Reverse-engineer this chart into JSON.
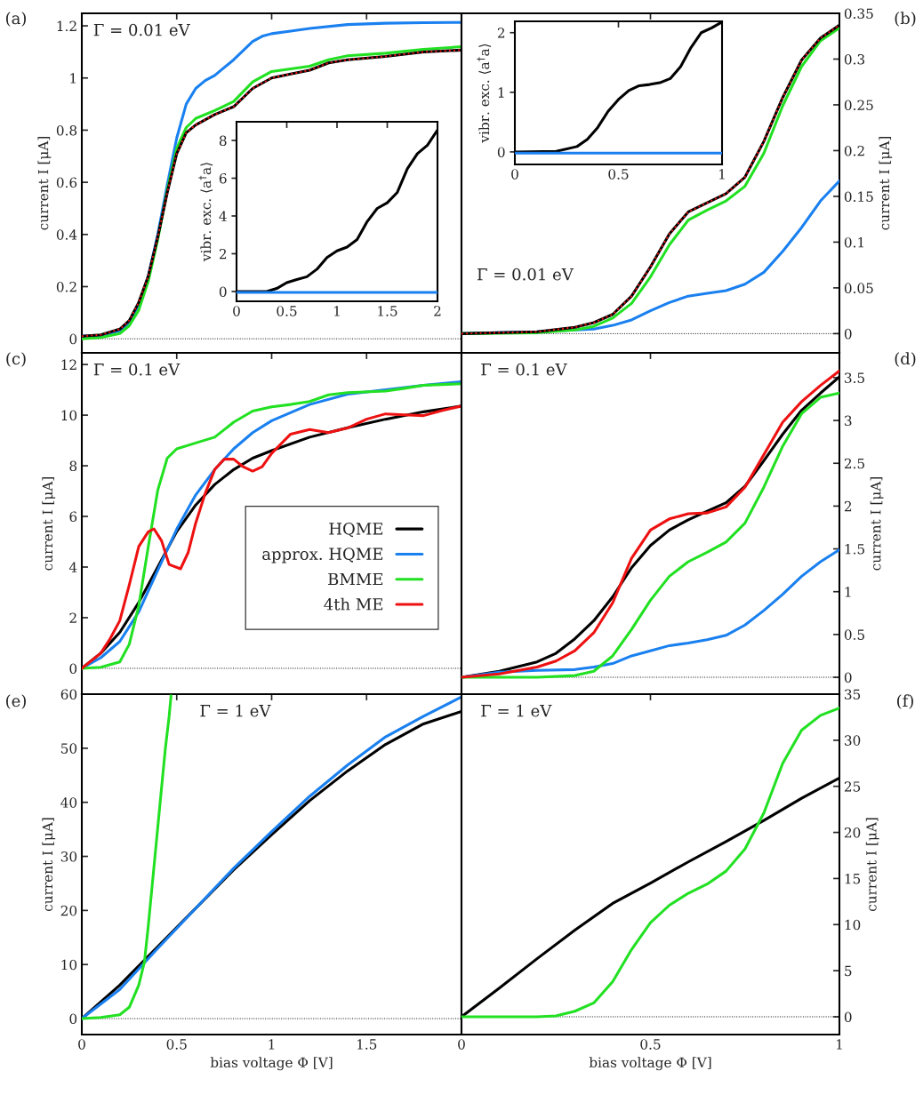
{
  "chart_data": [
    {
      "type": "line",
      "ylabel": "current I [μA]",
      "xlim": [
        0,
        2
      ],
      "xticks": [
        0,
        0.5,
        1,
        1.5,
        2
      ],
      "ylim": [
        -0.054,
        1.248
      ],
      "yticks": [
        0,
        0.2,
        0.4,
        0.6,
        0.8,
        1,
        1.2
      ],
      "tick_labels": "y",
      "annotations": [
        "(a)",
        "Γ = 0.01 eV"
      ],
      "ref_lines": [
        {
          "axis": "y",
          "value": 0,
          "color": "#000000",
          "line_style": "dotted"
        }
      ],
      "series": [
        {
          "color": "#1a80f0",
          "x": [
            0,
            0.1,
            0.2,
            0.25,
            0.3,
            0.35,
            0.4,
            0.45,
            0.5,
            0.55,
            0.6,
            0.65,
            0.7,
            0.8,
            0.9,
            0.95,
            1.0,
            1.1,
            1.2,
            1.4,
            1.6,
            1.8,
            2.0
          ],
          "values": [
            0.01,
            0.013,
            0.03,
            0.06,
            0.13,
            0.24,
            0.4,
            0.59,
            0.77,
            0.9,
            0.96,
            0.99,
            1.01,
            1.07,
            1.14,
            1.16,
            1.17,
            1.18,
            1.19,
            1.205,
            1.21,
            1.212,
            1.213
          ]
        },
        {
          "color": "#22e022",
          "x": [
            0,
            0.1,
            0.2,
            0.25,
            0.3,
            0.35,
            0.4,
            0.45,
            0.5,
            0.55,
            0.6,
            0.7,
            0.8,
            0.9,
            1.0,
            1.1,
            1.2,
            1.3,
            1.4,
            1.6,
            1.8,
            2.0
          ],
          "values": [
            0.0,
            0.005,
            0.02,
            0.05,
            0.11,
            0.22,
            0.38,
            0.57,
            0.73,
            0.81,
            0.845,
            0.875,
            0.91,
            0.985,
            1.025,
            1.035,
            1.045,
            1.07,
            1.085,
            1.095,
            1.11,
            1.12
          ]
        },
        {
          "color": "#000000",
          "x": [
            0,
            0.1,
            0.2,
            0.25,
            0.3,
            0.35,
            0.4,
            0.45,
            0.5,
            0.55,
            0.6,
            0.7,
            0.8,
            0.9,
            1.0,
            1.1,
            1.2,
            1.3,
            1.4,
            1.6,
            1.8,
            2.0
          ],
          "values": [
            0.01,
            0.015,
            0.037,
            0.07,
            0.14,
            0.24,
            0.39,
            0.56,
            0.71,
            0.79,
            0.82,
            0.86,
            0.89,
            0.96,
            1.0,
            1.015,
            1.03,
            1.058,
            1.07,
            1.083,
            1.1,
            1.107
          ]
        },
        {
          "color": "#ee1111",
          "line_style": "dotted",
          "x": [
            0,
            0.1,
            0.2,
            0.25,
            0.3,
            0.35,
            0.4,
            0.45,
            0.5,
            0.55,
            0.6,
            0.7,
            0.8,
            0.9,
            1.0,
            1.1,
            1.2,
            1.3,
            1.4,
            1.6,
            1.8,
            2.0
          ],
          "values": [
            0.01,
            0.015,
            0.037,
            0.07,
            0.14,
            0.24,
            0.39,
            0.56,
            0.71,
            0.79,
            0.82,
            0.86,
            0.89,
            0.96,
            1.0,
            1.015,
            1.03,
            1.058,
            1.07,
            1.083,
            1.1,
            1.107
          ]
        }
      ]
    },
    {
      "type": "line",
      "ylabel": "vibr. exc. ⟨a$^{†}$a⟩",
      "xlim": [
        0,
        2
      ],
      "xticks": [
        0,
        0.5,
        1,
        1.5,
        2
      ],
      "ylim": [
        -0.52,
        8.99
      ],
      "yticks": [
        0,
        2,
        4,
        6,
        8
      ],
      "series": [
        {
          "color": "#000000",
          "x": [
            0,
            0.3,
            0.4,
            0.5,
            0.6,
            0.7,
            0.8,
            0.9,
            1.0,
            1.1,
            1.2,
            1.3,
            1.4,
            1.5,
            1.6,
            1.7,
            1.8,
            1.9,
            2.0
          ],
          "values": [
            0,
            0,
            0.16,
            0.47,
            0.63,
            0.78,
            1.18,
            1.8,
            2.15,
            2.35,
            2.75,
            3.7,
            4.4,
            4.7,
            5.25,
            6.5,
            7.3,
            7.75,
            8.55
          ]
        },
        {
          "color": "#1a80f0",
          "x": [
            0,
            0.5,
            1,
            1.5,
            2
          ],
          "values": [
            -0.05,
            -0.05,
            -0.05,
            -0.05,
            -0.05
          ]
        }
      ]
    },
    {
      "type": "line",
      "y2label": "current I [μA]",
      "xlim": [
        0,
        1
      ],
      "xticks": [
        0,
        0.5,
        1
      ],
      "y2lim": [
        -0.021,
        0.35
      ],
      "y2ticks": [
        0,
        0.05,
        0.1,
        0.15,
        0.2,
        0.25,
        0.3,
        0.35
      ],
      "tick_labels": "y",
      "annotations": [
        "(b)",
        "Γ = 0.01 eV"
      ],
      "ref_lines": [
        {
          "axis": "y2",
          "value": 0,
          "color": "#000000",
          "line_style": "dotted"
        }
      ],
      "series": [
        {
          "axis": "y2",
          "color": "#1a80f0",
          "x": [
            0,
            0.2,
            0.3,
            0.35,
            0.4,
            0.45,
            0.5,
            0.55,
            0.6,
            0.65,
            0.7,
            0.75,
            0.8,
            0.85,
            0.9,
            0.95,
            1.0
          ],
          "values": [
            0,
            0.002,
            0.004,
            0.005,
            0.009,
            0.015,
            0.025,
            0.034,
            0.041,
            0.044,
            0.047,
            0.054,
            0.067,
            0.09,
            0.116,
            0.145,
            0.167
          ]
        },
        {
          "axis": "y2",
          "color": "#22e022",
          "x": [
            0,
            0.2,
            0.3,
            0.35,
            0.4,
            0.45,
            0.5,
            0.55,
            0.6,
            0.65,
            0.7,
            0.75,
            0.8,
            0.85,
            0.9,
            0.95,
            1.0
          ],
          "values": [
            0,
            0.001,
            0.004,
            0.008,
            0.017,
            0.033,
            0.062,
            0.097,
            0.124,
            0.135,
            0.145,
            0.161,
            0.197,
            0.249,
            0.292,
            0.32,
            0.334
          ]
        },
        {
          "axis": "y2",
          "color": "#000000",
          "x": [
            0,
            0.2,
            0.3,
            0.35,
            0.4,
            0.45,
            0.5,
            0.55,
            0.6,
            0.65,
            0.7,
            0.75,
            0.8,
            0.85,
            0.9,
            0.95,
            1.0
          ],
          "values": [
            0,
            0.002,
            0.007,
            0.012,
            0.021,
            0.041,
            0.073,
            0.109,
            0.133,
            0.143,
            0.153,
            0.171,
            0.21,
            0.258,
            0.299,
            0.323,
            0.337
          ]
        },
        {
          "axis": "y2",
          "color": "#ee1111",
          "line_style": "dotted",
          "x": [
            0,
            0.2,
            0.3,
            0.35,
            0.4,
            0.45,
            0.5,
            0.55,
            0.6,
            0.65,
            0.7,
            0.75,
            0.8,
            0.85,
            0.9,
            0.95,
            1.0
          ],
          "values": [
            0,
            0.002,
            0.007,
            0.012,
            0.021,
            0.041,
            0.073,
            0.109,
            0.133,
            0.143,
            0.153,
            0.171,
            0.21,
            0.258,
            0.299,
            0.323,
            0.337
          ]
        }
      ]
    },
    {
      "type": "line",
      "ylabel": "vibr. exc. ⟨a$^{†}$a⟩",
      "xlim": [
        0,
        1
      ],
      "xticks": [
        0,
        0.5,
        1
      ],
      "ylim": [
        -0.21,
        2.19
      ],
      "yticks": [
        0,
        1,
        2
      ],
      "series": [
        {
          "color": "#000000",
          "x": [
            0,
            0.2,
            0.3,
            0.35,
            0.4,
            0.45,
            0.5,
            0.55,
            0.6,
            0.65,
            0.7,
            0.75,
            0.8,
            0.85,
            0.9,
            0.95,
            1.0
          ],
          "values": [
            0,
            0.01,
            0.09,
            0.21,
            0.41,
            0.68,
            0.88,
            1.03,
            1.11,
            1.13,
            1.16,
            1.23,
            1.43,
            1.75,
            2.0,
            2.08,
            2.18
          ]
        },
        {
          "color": "#1a80f0",
          "x": [
            0,
            0.25,
            0.5,
            0.75,
            1
          ],
          "values": [
            -0.02,
            -0.02,
            -0.02,
            -0.02,
            -0.02
          ]
        }
      ]
    },
    {
      "type": "line",
      "ylabel": "current I [μA]",
      "xlim": [
        0,
        2
      ],
      "xticks": [
        0,
        0.5,
        1,
        1.5,
        2
      ],
      "ylim": [
        -1.02,
        12.46
      ],
      "yticks": [
        0,
        2,
        4,
        6,
        8,
        10,
        12
      ],
      "tick_labels": "y",
      "annotations": [
        "(c)",
        "Γ = 0.1 eV"
      ],
      "legend": "right",
      "ref_lines": [
        {
          "axis": "y",
          "value": 0,
          "color": "#000000",
          "line_style": "dotted"
        }
      ],
      "series": [
        {
          "name": "HQME",
          "color": "#000000",
          "x": [
            0,
            0.1,
            0.2,
            0.3,
            0.4,
            0.5,
            0.6,
            0.7,
            0.8,
            0.9,
            1.0,
            1.2,
            1.4,
            1.6,
            1.8,
            2.0
          ],
          "values": [
            0,
            0.6,
            1.42,
            2.6,
            4.0,
            5.4,
            6.45,
            7.26,
            7.85,
            8.3,
            8.6,
            9.13,
            9.5,
            9.84,
            10.13,
            10.36
          ]
        },
        {
          "name": "approx. HQME",
          "color": "#1a80f0",
          "x": [
            0,
            0.1,
            0.2,
            0.3,
            0.4,
            0.5,
            0.6,
            0.7,
            0.8,
            0.9,
            1.0,
            1.2,
            1.4,
            1.6,
            1.8,
            2.0
          ],
          "values": [
            0,
            0.42,
            1.06,
            2.23,
            3.87,
            5.5,
            6.85,
            7.85,
            8.67,
            9.31,
            9.78,
            10.42,
            10.83,
            11.0,
            11.18,
            11.32
          ]
        },
        {
          "name": "BMME",
          "color": "#22e022",
          "x": [
            0,
            0.1,
            0.2,
            0.25,
            0.3,
            0.35,
            0.4,
            0.45,
            0.5,
            0.6,
            0.7,
            0.8,
            0.9,
            1.0,
            1.1,
            1.2,
            1.3,
            1.4,
            1.6,
            1.7,
            1.8,
            2.0
          ],
          "values": [
            0,
            0.04,
            0.25,
            0.95,
            2.47,
            4.8,
            7.03,
            8.3,
            8.67,
            8.9,
            9.13,
            9.72,
            10.16,
            10.33,
            10.42,
            10.54,
            10.8,
            10.89,
            10.95,
            11.06,
            11.18,
            11.24
          ]
        },
        {
          "name": "4th ME",
          "color": "#ee1111",
          "x": [
            0,
            0.1,
            0.15,
            0.2,
            0.25,
            0.3,
            0.35,
            0.38,
            0.42,
            0.46,
            0.52,
            0.56,
            0.6,
            0.65,
            0.7,
            0.75,
            0.8,
            0.85,
            0.9,
            0.95,
            1.0,
            1.1,
            1.2,
            1.3,
            1.4,
            1.5,
            1.6,
            1.7,
            1.8,
            1.9,
            2.0
          ],
          "values": [
            0,
            0.6,
            1.18,
            1.88,
            3.29,
            4.81,
            5.39,
            5.51,
            5.04,
            4.1,
            3.93,
            4.57,
            5.74,
            6.91,
            7.85,
            8.26,
            8.26,
            7.96,
            7.79,
            7.96,
            8.49,
            9.25,
            9.43,
            9.31,
            9.49,
            9.84,
            10.05,
            10.01,
            9.98,
            10.19,
            10.36
          ]
        }
      ]
    },
    {
      "type": "line",
      "y2label": "current I [μA]",
      "xlim": [
        0,
        1
      ],
      "xticks": [
        0,
        0.5,
        1
      ],
      "y2lim": [
        -0.197,
        3.79
      ],
      "y2ticks": [
        0,
        0.5,
        1,
        1.5,
        2,
        2.5,
        3,
        3.5
      ],
      "tick_labels": "y",
      "annotations": [
        "(d)",
        "Γ = 0.1 eV"
      ],
      "ref_lines": [
        {
          "axis": "y2",
          "value": 0,
          "color": "#000000",
          "line_style": "dotted"
        }
      ],
      "series": [
        {
          "axis": "y2",
          "color": "#000000",
          "x": [
            0,
            0.1,
            0.2,
            0.25,
            0.3,
            0.35,
            0.4,
            0.45,
            0.5,
            0.55,
            0.6,
            0.65,
            0.7,
            0.75,
            0.8,
            0.85,
            0.9,
            0.95,
            1.0
          ],
          "values": [
            0,
            0.07,
            0.18,
            0.28,
            0.45,
            0.66,
            0.94,
            1.28,
            1.54,
            1.72,
            1.84,
            1.94,
            2.04,
            2.23,
            2.53,
            2.84,
            3.12,
            3.32,
            3.51
          ]
        },
        {
          "axis": "y2",
          "color": "#1a80f0",
          "x": [
            0,
            0.1,
            0.2,
            0.3,
            0.35,
            0.4,
            0.45,
            0.5,
            0.55,
            0.6,
            0.65,
            0.7,
            0.75,
            0.8,
            0.85,
            0.9,
            0.95,
            1.0
          ],
          "values": [
            0,
            0.06,
            0.08,
            0.09,
            0.12,
            0.16,
            0.25,
            0.31,
            0.37,
            0.4,
            0.44,
            0.49,
            0.61,
            0.78,
            0.97,
            1.18,
            1.35,
            1.49
          ]
        },
        {
          "axis": "y2",
          "color": "#22e022",
          "x": [
            0,
            0.2,
            0.3,
            0.35,
            0.4,
            0.45,
            0.5,
            0.55,
            0.6,
            0.65,
            0.7,
            0.75,
            0.8,
            0.85,
            0.9,
            0.95,
            1.0
          ],
          "values": [
            0,
            0,
            0.02,
            0.07,
            0.25,
            0.56,
            0.9,
            1.18,
            1.35,
            1.46,
            1.58,
            1.8,
            2.22,
            2.7,
            3.08,
            3.27,
            3.32
          ]
        },
        {
          "axis": "y2",
          "color": "#ee1111",
          "x": [
            0,
            0.1,
            0.2,
            0.25,
            0.3,
            0.35,
            0.4,
            0.45,
            0.5,
            0.55,
            0.6,
            0.65,
            0.7,
            0.75,
            0.8,
            0.85,
            0.9,
            0.95,
            1.0
          ],
          "values": [
            0,
            0.04,
            0.12,
            0.19,
            0.31,
            0.52,
            0.87,
            1.39,
            1.72,
            1.85,
            1.91,
            1.92,
            1.99,
            2.22,
            2.6,
            2.98,
            3.22,
            3.41,
            3.58
          ]
        }
      ]
    },
    {
      "type": "line",
      "xlabel": "bias voltage Φ [V]",
      "ylabel": "current I [μA]",
      "xlim": [
        0,
        2
      ],
      "xticks": [
        0,
        0.5,
        1,
        1.5,
        {
          "value": 2,
          "label": null
        }
      ],
      "ylim": [
        -2.95,
        60
      ],
      "yticks": [
        0,
        10,
        20,
        30,
        40,
        50,
        60
      ],
      "annotations": [
        "(e)",
        "Γ = 1 eV"
      ],
      "ref_lines": [
        {
          "axis": "y",
          "value": 0,
          "color": "#000000",
          "line_style": "dotted"
        }
      ],
      "series": [
        {
          "color": "#000000",
          "x": [
            0,
            0.2,
            0.4,
            0.6,
            0.8,
            1.0,
            1.2,
            1.4,
            1.6,
            1.8,
            2.0
          ],
          "values": [
            0,
            6.2,
            13.3,
            20.4,
            27.5,
            34.0,
            40.3,
            45.8,
            50.7,
            54.5,
            56.8
          ]
        },
        {
          "color": "#1a80f0",
          "x": [
            0,
            0.2,
            0.4,
            0.6,
            0.8,
            1.0,
            1.2,
            1.4,
            1.6,
            1.8,
            2.0
          ],
          "values": [
            0,
            5.4,
            13.0,
            20.4,
            27.8,
            34.6,
            41.1,
            46.9,
            52.1,
            55.9,
            59.5
          ]
        },
        {
          "color": "#22e022",
          "x": [
            0,
            0.1,
            0.2,
            0.25,
            0.3,
            0.33,
            0.35,
            0.38,
            0.41,
            0.44,
            0.46,
            0.47
          ],
          "values": [
            0,
            0.2,
            0.7,
            2.1,
            6.2,
            10.5,
            17.1,
            28,
            39,
            49.9,
            55.9,
            59.7
          ]
        }
      ]
    },
    {
      "type": "line",
      "xlabel": "bias voltage Φ [V]",
      "y2label": "current I [μA]",
      "xlim": [
        0,
        1
      ],
      "xticks": [
        0,
        0.5,
        1
      ],
      "y2lim": [
        -1.93,
        35
      ],
      "y2ticks": [
        0,
        5,
        10,
        15,
        20,
        25,
        30,
        35
      ],
      "annotations": [
        "(f)",
        "Γ = 1 eV"
      ],
      "ref_lines": [
        {
          "axis": "y2",
          "value": 0,
          "color": "#000000",
          "line_style": "dotted"
        }
      ],
      "series": [
        {
          "axis": "y2",
          "color": "#000000",
          "x": [
            0,
            0.1,
            0.2,
            0.3,
            0.4,
            0.5,
            0.6,
            0.7,
            0.8,
            0.9,
            1.0
          ],
          "values": [
            0,
            3.1,
            6.3,
            9.4,
            12.3,
            14.5,
            16.8,
            19.0,
            21.3,
            23.7,
            25.9
          ]
        },
        {
          "axis": "y2",
          "color": "#22e022",
          "x": [
            0,
            0.2,
            0.25,
            0.3,
            0.35,
            0.4,
            0.45,
            0.5,
            0.55,
            0.6,
            0.65,
            0.7,
            0.75,
            0.8,
            0.85,
            0.9,
            0.95,
            1.0
          ],
          "values": [
            0,
            0,
            0.1,
            0.6,
            1.5,
            3.8,
            7.3,
            10.2,
            12.1,
            13.4,
            14.4,
            15.8,
            18.2,
            22.1,
            27.5,
            31.1,
            32.7,
            33.5
          ]
        }
      ]
    }
  ]
}
